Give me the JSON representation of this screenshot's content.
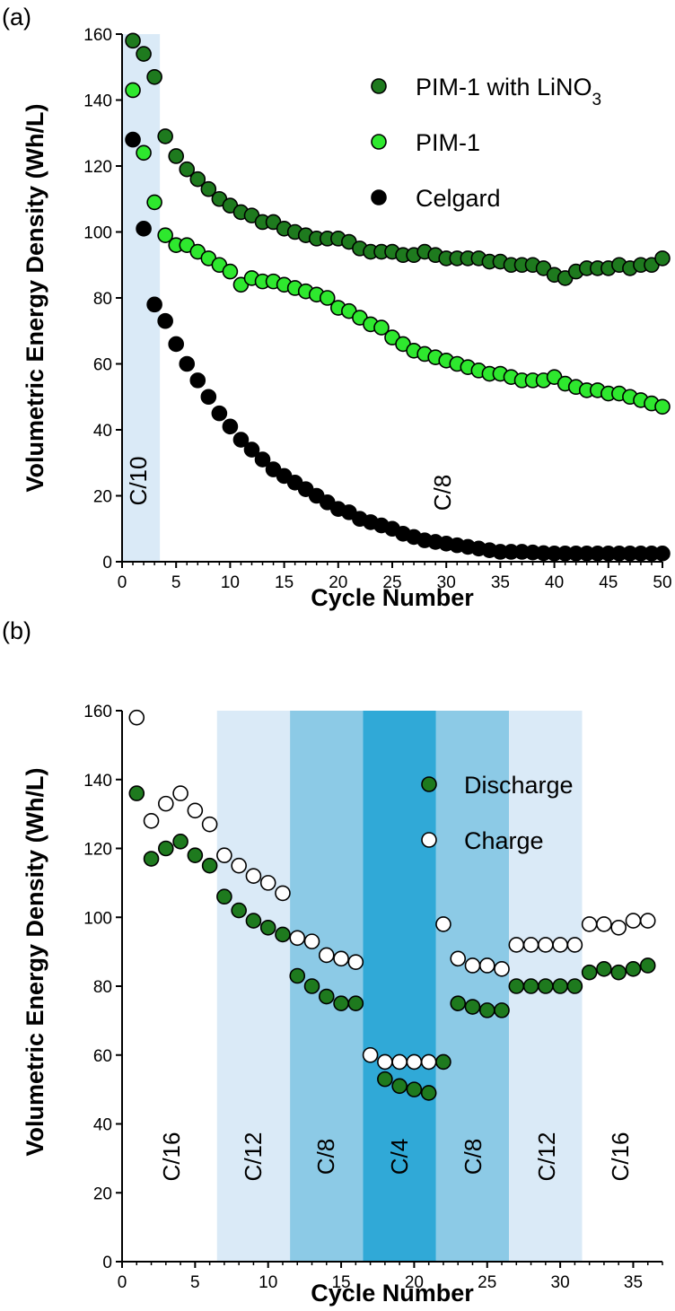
{
  "colors": {
    "dark_green": "#1e7a1e",
    "light_green": "#2ee82e",
    "black": "#000000",
    "white": "#ffffff",
    "band_light": "#daeaf7",
    "band_mid": "#8ccae6",
    "band_dark": "#30a9d7"
  },
  "chart_data": [
    {
      "panel_label": "(a)",
      "type": "scatter",
      "xlabel": "Cycle Number",
      "ylabel": "Volumetric Energy Density (Wh/L)",
      "xlim": [
        0,
        50
      ],
      "ylim": [
        0,
        160
      ],
      "x_ticks": [
        0,
        5,
        10,
        15,
        20,
        25,
        30,
        35,
        40,
        45,
        50
      ],
      "y_ticks": [
        0,
        20,
        40,
        60,
        80,
        100,
        120,
        140,
        160
      ],
      "legend_position": "top-right",
      "rate_bands": [
        {
          "label": "C/10",
          "x_start": 0,
          "x_end": 3.5,
          "shade": "light"
        },
        {
          "label": "C/8",
          "x_start": 3.5,
          "x_end": 50,
          "shade": "none"
        }
      ],
      "series": [
        {
          "name": "PIM-1 with LiNO3",
          "color_key": "dark_green",
          "x": [
            1,
            2,
            3,
            4,
            5,
            6,
            7,
            8,
            9,
            10,
            11,
            12,
            13,
            14,
            15,
            16,
            17,
            18,
            19,
            20,
            21,
            22,
            23,
            24,
            25,
            26,
            27,
            28,
            29,
            30,
            31,
            32,
            33,
            34,
            35,
            36,
            37,
            38,
            39,
            40,
            41,
            42,
            43,
            44,
            45,
            46,
            47,
            48,
            49,
            50
          ],
          "y": [
            158,
            154,
            147,
            129,
            123,
            119,
            116,
            113,
            110,
            108,
            106,
            105,
            103,
            103,
            101,
            100,
            99,
            98,
            98,
            98,
            97,
            95,
            94,
            94,
            94,
            93,
            93,
            94,
            93,
            92,
            92,
            92,
            92,
            91,
            91,
            90,
            90,
            90,
            89,
            87,
            86,
            88,
            89,
            89,
            89,
            90,
            89,
            90,
            90,
            92
          ]
        },
        {
          "name": "PIM-1",
          "color_key": "light_green",
          "x": [
            1,
            2,
            3,
            4,
            5,
            6,
            7,
            8,
            9,
            10,
            11,
            12,
            13,
            14,
            15,
            16,
            17,
            18,
            19,
            20,
            21,
            22,
            23,
            24,
            25,
            26,
            27,
            28,
            29,
            30,
            31,
            32,
            33,
            34,
            35,
            36,
            37,
            38,
            39,
            40,
            41,
            42,
            43,
            44,
            45,
            46,
            47,
            48,
            49,
            50
          ],
          "y": [
            143,
            124,
            109,
            99,
            96,
            96,
            94,
            92,
            90,
            88,
            84,
            86,
            85,
            85,
            84,
            83,
            82,
            81,
            80,
            77,
            76,
            74,
            72,
            71,
            68,
            66,
            64,
            63,
            62,
            61,
            60,
            59,
            58,
            57,
            57,
            56,
            55,
            55,
            55,
            56,
            54,
            53,
            52,
            52,
            51,
            51,
            50,
            49,
            48,
            47
          ]
        },
        {
          "name": "Celgard",
          "color_key": "black",
          "x": [
            1,
            2,
            3,
            4,
            5,
            6,
            7,
            8,
            9,
            10,
            11,
            12,
            13,
            14,
            15,
            16,
            17,
            18,
            19,
            20,
            21,
            22,
            23,
            24,
            25,
            26,
            27,
            28,
            29,
            30,
            31,
            32,
            33,
            34,
            35,
            36,
            37,
            38,
            39,
            40,
            41,
            42,
            43,
            44,
            45,
            46,
            47,
            48,
            49,
            50
          ],
          "y": [
            128,
            101,
            78,
            73,
            66,
            60,
            55,
            50,
            45,
            41,
            37,
            34,
            31,
            28,
            26,
            24,
            22,
            20,
            18,
            16,
            15,
            13,
            12,
            11,
            10,
            8.5,
            7.5,
            6.5,
            6,
            5.5,
            5,
            4.5,
            4,
            3.5,
            3,
            3,
            3,
            2.8,
            2.6,
            2.5,
            2.5,
            2.5,
            2.5,
            2.5,
            2.5,
            2.5,
            2.5,
            2.5,
            2.5,
            2.5
          ]
        }
      ]
    },
    {
      "panel_label": "(b)",
      "type": "scatter",
      "xlabel": "Cycle Number",
      "ylabel": "Volumetric Energy Density (Wh/L)",
      "xlim": [
        0,
        37
      ],
      "ylim": [
        0,
        160
      ],
      "x_ticks": [
        0,
        5,
        10,
        15,
        20,
        25,
        30,
        35
      ],
      "y_ticks": [
        0,
        20,
        40,
        60,
        80,
        100,
        120,
        140,
        160
      ],
      "legend_position": "top-right",
      "rate_bands": [
        {
          "label": "C/16",
          "x_start": 0,
          "x_end": 6.5,
          "shade": "none"
        },
        {
          "label": "C/12",
          "x_start": 6.5,
          "x_end": 11.5,
          "shade": "light"
        },
        {
          "label": "C/8",
          "x_start": 11.5,
          "x_end": 16.5,
          "shade": "mid"
        },
        {
          "label": "C/4",
          "x_start": 16.5,
          "x_end": 21.5,
          "shade": "dark"
        },
        {
          "label": "C/8",
          "x_start": 21.5,
          "x_end": 26.5,
          "shade": "mid"
        },
        {
          "label": "C/12",
          "x_start": 26.5,
          "x_end": 31.5,
          "shade": "light"
        },
        {
          "label": "C/16",
          "x_start": 31.5,
          "x_end": 37,
          "shade": "none"
        }
      ],
      "series": [
        {
          "name": "Discharge",
          "color_key": "dark_green",
          "x": [
            1,
            2,
            3,
            4,
            5,
            6,
            7,
            8,
            9,
            10,
            11,
            12,
            13,
            14,
            15,
            16,
            18,
            19,
            20,
            21,
            22,
            23,
            24,
            25,
            26,
            27,
            28,
            29,
            30,
            31,
            32,
            33,
            34,
            35,
            36
          ],
          "y": [
            136,
            117,
            120,
            122,
            118,
            115,
            106,
            102,
            99,
            97,
            95,
            83,
            80,
            77,
            75,
            75,
            53,
            51,
            50,
            49,
            58,
            75,
            74,
            73,
            73,
            80,
            80,
            80,
            80,
            80,
            84,
            85,
            84,
            85,
            86
          ]
        },
        {
          "name": "Charge",
          "color_key": "white",
          "x": [
            1,
            2,
            3,
            4,
            5,
            6,
            7,
            8,
            9,
            10,
            11,
            12,
            13,
            14,
            15,
            16,
            17,
            18,
            19,
            20,
            21,
            22,
            23,
            24,
            25,
            26,
            27,
            28,
            29,
            30,
            31,
            32,
            33,
            34,
            35,
            36
          ],
          "y": [
            158,
            128,
            133,
            136,
            131,
            127,
            118,
            115,
            112,
            110,
            107,
            94,
            93,
            89,
            88,
            87,
            60,
            58,
            58,
            58,
            58,
            98,
            88,
            86,
            86,
            85,
            92,
            92,
            92,
            92,
            92,
            98,
            98,
            97,
            99,
            99
          ]
        }
      ]
    }
  ],
  "legend_a": [
    {
      "name": "PIM-1 with LiNO",
      "subscript": "3",
      "color_key": "dark_green"
    },
    {
      "name": "PIM-1",
      "subscript": "",
      "color_key": "light_green"
    },
    {
      "name": "Celgard",
      "subscript": "",
      "color_key": "black"
    }
  ],
  "legend_b": [
    {
      "name": "Discharge",
      "color_key": "dark_green"
    },
    {
      "name": "Charge",
      "color_key": "white"
    }
  ]
}
